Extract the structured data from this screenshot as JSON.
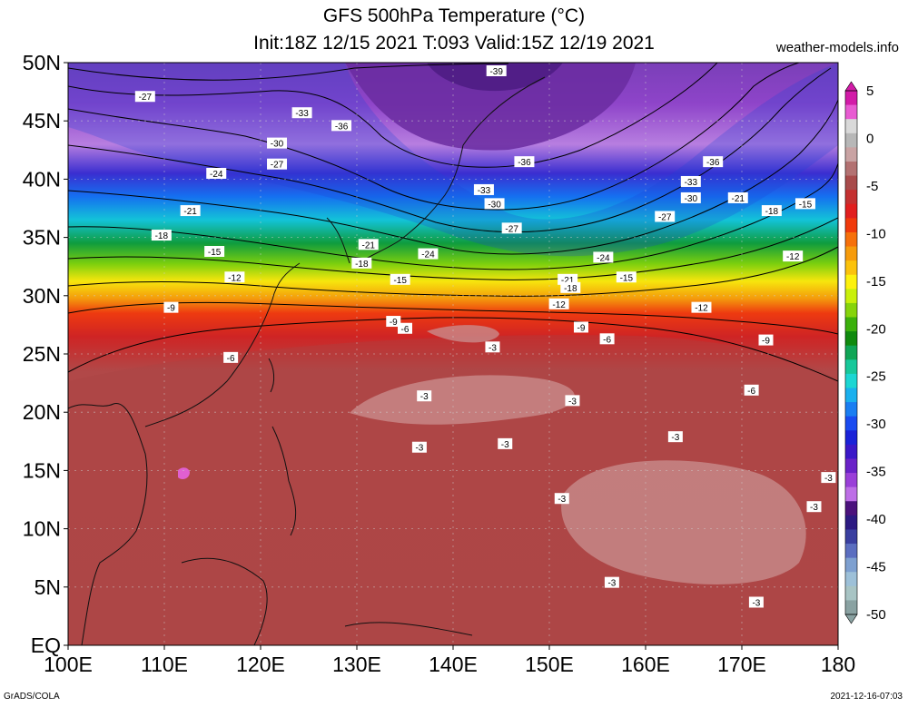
{
  "header": {
    "title": "GFS 500hPa Temperature (°C)",
    "subtitle": "Init:18Z 12/15 2021 T:093 Valid:15Z 12/19 2021",
    "credit": "weather-models.info"
  },
  "footer": {
    "left": "GrADS/COLA",
    "right": "2021-12-16-07:03"
  },
  "map": {
    "lat_labels": [
      "50N",
      "45N",
      "40N",
      "35N",
      "30N",
      "25N",
      "20N",
      "15N",
      "10N",
      "5N",
      "EQ"
    ],
    "lon_labels": [
      "100E",
      "110E",
      "120E",
      "130E",
      "140E",
      "150E",
      "160E",
      "170E",
      "180"
    ],
    "contour_labels": [
      {
        "text": "-39",
        "lon": 144.5,
        "lat": 49.3
      },
      {
        "text": "-27",
        "lon": 108.0,
        "lat": 47.1
      },
      {
        "text": "-33",
        "lon": 124.3,
        "lat": 45.7
      },
      {
        "text": "-36",
        "lon": 128.4,
        "lat": 44.6
      },
      {
        "text": "-30",
        "lon": 121.7,
        "lat": 43.1
      },
      {
        "text": "-27",
        "lon": 121.7,
        "lat": 41.3
      },
      {
        "text": "-24",
        "lon": 115.4,
        "lat": 40.5
      },
      {
        "text": "-36",
        "lon": 147.4,
        "lat": 41.5
      },
      {
        "text": "-36",
        "lon": 167.0,
        "lat": 41.5
      },
      {
        "text": "-33",
        "lon": 143.2,
        "lat": 39.1
      },
      {
        "text": "-33",
        "lon": 164.7,
        "lat": 39.8
      },
      {
        "text": "-30",
        "lon": 144.3,
        "lat": 37.9
      },
      {
        "text": "-30",
        "lon": 164.7,
        "lat": 38.4
      },
      {
        "text": "-27",
        "lon": 146.1,
        "lat": 35.8
      },
      {
        "text": "-27",
        "lon": 162.0,
        "lat": 36.8
      },
      {
        "text": "-21",
        "lon": 112.7,
        "lat": 37.3
      },
      {
        "text": "-21",
        "lon": 169.6,
        "lat": 38.4
      },
      {
        "text": "-18",
        "lon": 173.1,
        "lat": 37.3
      },
      {
        "text": "-15",
        "lon": 176.6,
        "lat": 37.9
      },
      {
        "text": "-21",
        "lon": 131.2,
        "lat": 34.4
      },
      {
        "text": "-24",
        "lon": 137.4,
        "lat": 33.6
      },
      {
        "text": "-24",
        "lon": 155.6,
        "lat": 33.3
      },
      {
        "text": "-18",
        "lon": 109.7,
        "lat": 35.2
      },
      {
        "text": "-18",
        "lon": 130.5,
        "lat": 32.8
      },
      {
        "text": "-15",
        "lon": 115.2,
        "lat": 33.8
      },
      {
        "text": "-15",
        "lon": 134.5,
        "lat": 31.4
      },
      {
        "text": "-15",
        "lon": 158.0,
        "lat": 31.6
      },
      {
        "text": "-12",
        "lon": 117.3,
        "lat": 31.6
      },
      {
        "text": "-12",
        "lon": 175.3,
        "lat": 33.4
      },
      {
        "text": "-21",
        "lon": 151.9,
        "lat": 31.4
      },
      {
        "text": "-18",
        "lon": 152.2,
        "lat": 30.7
      },
      {
        "text": "-12",
        "lon": 151.0,
        "lat": 29.3
      },
      {
        "text": "-12",
        "lon": 165.8,
        "lat": 29.0
      },
      {
        "text": "-9",
        "lon": 110.7,
        "lat": 29.0
      },
      {
        "text": "-9",
        "lon": 133.8,
        "lat": 27.8
      },
      {
        "text": "-6",
        "lon": 135.0,
        "lat": 27.2
      },
      {
        "text": "-9",
        "lon": 153.3,
        "lat": 27.3
      },
      {
        "text": "-6",
        "lon": 156.0,
        "lat": 26.3
      },
      {
        "text": "-9",
        "lon": 172.5,
        "lat": 26.2
      },
      {
        "text": "-6",
        "lon": 116.9,
        "lat": 24.7
      },
      {
        "text": "-3",
        "lon": 144.1,
        "lat": 25.6
      },
      {
        "text": "-3",
        "lon": 137.0,
        "lat": 21.4
      },
      {
        "text": "-3",
        "lon": 152.4,
        "lat": 21.0
      },
      {
        "text": "-6",
        "lon": 171.0,
        "lat": 21.9
      },
      {
        "text": "-3",
        "lon": 163.1,
        "lat": 17.9
      },
      {
        "text": "-3",
        "lon": 136.5,
        "lat": 17.0
      },
      {
        "text": "-3",
        "lon": 145.4,
        "lat": 17.3
      },
      {
        "text": "-3",
        "lon": 179.0,
        "lat": 14.4
      },
      {
        "text": "-3",
        "lon": 151.3,
        "lat": 12.6
      },
      {
        "text": "-3",
        "lon": 177.5,
        "lat": 11.9
      },
      {
        "text": "-3",
        "lon": 156.5,
        "lat": 5.4
      },
      {
        "text": "-3",
        "lon": 171.5,
        "lat": 3.7
      }
    ]
  },
  "colorbar": {
    "labels": [
      "5",
      "0",
      "-5",
      "-10",
      "-15",
      "-20",
      "-25",
      "-30",
      "-35",
      "-40",
      "-45",
      "-50"
    ],
    "colors": [
      "#d21ba8",
      "#e85bd2",
      "#d9d9d9",
      "#b7b7b7",
      "#c9a3a3",
      "#b37272",
      "#a84b4b",
      "#c43131",
      "#e11f1f",
      "#f03a0c",
      "#f6700b",
      "#f69b0c",
      "#fbc20c",
      "#fdf10d",
      "#c9f00c",
      "#86d40c",
      "#3bb00c",
      "#108a0e",
      "#10a556",
      "#17c89a",
      "#1cd6d3",
      "#1ab0ee",
      "#1a7ef2",
      "#1a4bf0",
      "#1a22d8",
      "#3b18c8",
      "#6a22c8",
      "#9a3fd8",
      "#bd6ee6",
      "#4b127c",
      "#2c1a82",
      "#3a3fa0",
      "#5b6ec0",
      "#7ea0d0",
      "#9dc0d8",
      "#a8c4c4",
      "#8aa2a2"
    ]
  }
}
